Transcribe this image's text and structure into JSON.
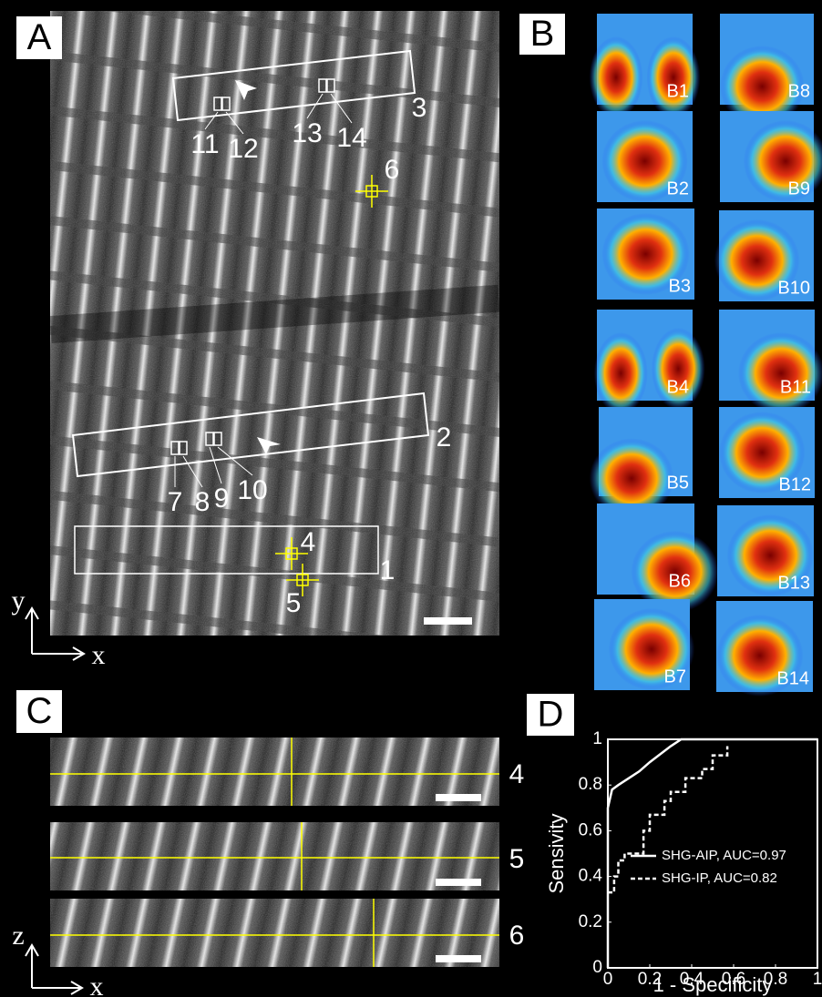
{
  "panel_labels": [
    "A",
    "B",
    "C",
    "D"
  ],
  "panel_a": {
    "region_labels": [
      "1",
      "2",
      "3"
    ],
    "point_labels": [
      "4",
      "5",
      "6"
    ],
    "roi_labels": [
      "7",
      "8",
      "9",
      "10",
      "11",
      "12",
      "13",
      "14"
    ],
    "axis_labels": {
      "y": "y",
      "x": "x"
    }
  },
  "panel_b": {
    "tiles": [
      "B1",
      "B2",
      "B3",
      "B4",
      "B5",
      "B6",
      "B7",
      "B8",
      "B9",
      "B10",
      "B11",
      "B12",
      "B13",
      "B14"
    ]
  },
  "panel_c": {
    "row_labels": [
      "4",
      "5",
      "6"
    ],
    "axis_labels": {
      "z": "z",
      "x": "x"
    }
  },
  "chart_data": {
    "type": "line",
    "xlabel": "1 - Specificity",
    "ylabel": "Sensivity",
    "xlim": [
      0,
      1
    ],
    "ylim": [
      0,
      1
    ],
    "xticks": [
      0,
      0.2,
      0.4,
      0.6,
      0.8,
      1
    ],
    "yticks": [
      0,
      0.2,
      0.4,
      0.6,
      0.8,
      1
    ],
    "series": [
      {
        "name": "SHG-AIP, AUC=0.97",
        "color": "#ffffff",
        "style": "solid",
        "x": [
          0,
          0,
          0.02,
          0.05,
          0.1,
          0.15,
          0.2,
          0.3,
          0.35,
          0.4,
          1
        ],
        "values": [
          0,
          0.7,
          0.78,
          0.8,
          0.83,
          0.86,
          0.9,
          0.97,
          1,
          1,
          1
        ]
      },
      {
        "name": "SHG-IP, AUC=0.82",
        "color": "#ffffff",
        "style": "dashed",
        "x": [
          0,
          0.03,
          0.03,
          0.05,
          0.05,
          0.08,
          0.08,
          0.17,
          0.17,
          0.2,
          0.2,
          0.27,
          0.27,
          0.3,
          0.3,
          0.37,
          0.37,
          0.45,
          0.45,
          0.5,
          0.5,
          0.57,
          0.57
        ],
        "values": [
          0.33,
          0.33,
          0.4,
          0.4,
          0.47,
          0.47,
          0.5,
          0.5,
          0.6,
          0.6,
          0.67,
          0.67,
          0.73,
          0.73,
          0.77,
          0.77,
          0.83,
          0.83,
          0.87,
          0.87,
          0.93,
          0.93,
          0.97
        ]
      }
    ]
  }
}
